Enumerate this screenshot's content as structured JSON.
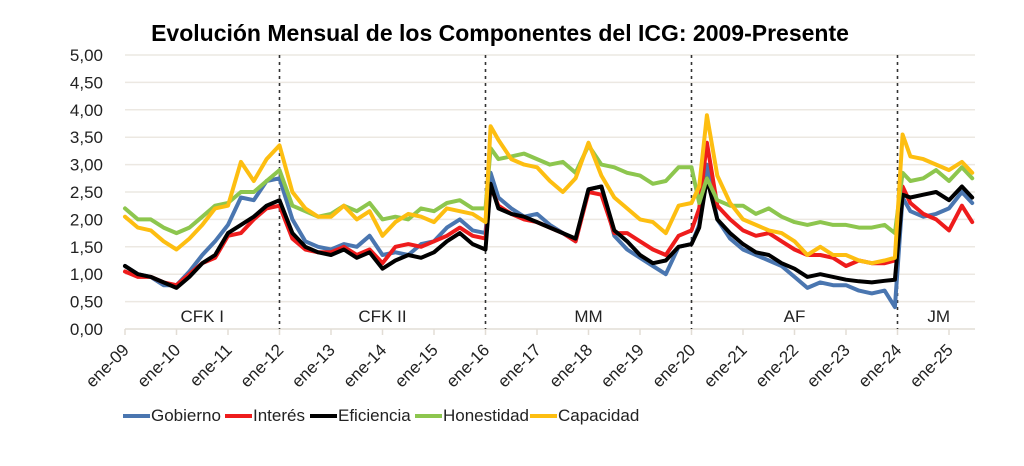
{
  "chart_data": {
    "type": "line",
    "title": "Evolución Mensual de los Componentes del ICG: 2009-Presente",
    "xlabel": "",
    "ylabel": "",
    "ylim": [
      0,
      5
    ],
    "yticks": [
      "0,00",
      "0,50",
      "1,00",
      "1,50",
      "2,00",
      "2,50",
      "3,00",
      "3,50",
      "4,00",
      "4,50",
      "5,00"
    ],
    "ytick_values": [
      0,
      0.5,
      1,
      1.5,
      2,
      2.5,
      3,
      3.5,
      4,
      4.5,
      5
    ],
    "xticks": [
      "ene-09",
      "ene-10",
      "ene-11",
      "ene-12",
      "ene-13",
      "ene-14",
      "ene-15",
      "ene-16",
      "ene-17",
      "ene-18",
      "ene-19",
      "ene-20",
      "ene-21",
      "ene-22",
      "ene-23",
      "ene-24",
      "ene-25"
    ],
    "xlim_years": [
      2009.0,
      2025.5
    ],
    "grid": true,
    "legend_position": "bottom",
    "period_dividers": [
      2012.0,
      2016.0,
      2020.0,
      2024.0
    ],
    "periods": [
      {
        "label": "CFK I",
        "center": 2010.5
      },
      {
        "label": "CFK II",
        "center": 2014.0
      },
      {
        "label": "MM",
        "center": 2018.0
      },
      {
        "label": "AF",
        "center": 2022.0
      },
      {
        "label": "JM",
        "center": 2024.8
      }
    ],
    "x": [
      2009.0,
      2009.25,
      2009.5,
      2009.75,
      2010.0,
      2010.25,
      2010.5,
      2010.75,
      2011.0,
      2011.25,
      2011.5,
      2011.75,
      2012.0,
      2012.25,
      2012.5,
      2012.75,
      2013.0,
      2013.25,
      2013.5,
      2013.75,
      2014.0,
      2014.25,
      2014.5,
      2014.75,
      2015.0,
      2015.25,
      2015.5,
      2015.75,
      2016.0,
      2016.1,
      2016.25,
      2016.5,
      2016.75,
      2017.0,
      2017.25,
      2017.5,
      2017.75,
      2018.0,
      2018.25,
      2018.5,
      2018.75,
      2019.0,
      2019.25,
      2019.5,
      2019.75,
      2020.0,
      2020.15,
      2020.3,
      2020.5,
      2020.75,
      2021.0,
      2021.25,
      2021.5,
      2021.75,
      2022.0,
      2022.25,
      2022.5,
      2022.75,
      2023.0,
      2023.25,
      2023.5,
      2023.75,
      2023.95,
      2024.1,
      2024.25,
      2024.5,
      2024.75,
      2025.0,
      2025.25,
      2025.45
    ],
    "series": [
      {
        "name": "Gobierno",
        "color": "#4a76b0",
        "values": [
          1.15,
          1.0,
          0.95,
          0.8,
          0.8,
          1.05,
          1.35,
          1.6,
          1.9,
          2.4,
          2.35,
          2.7,
          2.75,
          2.0,
          1.6,
          1.5,
          1.45,
          1.55,
          1.5,
          1.7,
          1.35,
          1.4,
          1.35,
          1.55,
          1.6,
          1.85,
          2.0,
          1.8,
          1.75,
          2.85,
          2.4,
          2.2,
          2.05,
          2.1,
          1.9,
          1.75,
          1.6,
          2.55,
          2.6,
          1.7,
          1.45,
          1.3,
          1.15,
          1.0,
          1.5,
          1.55,
          1.9,
          3.0,
          2.0,
          1.65,
          1.45,
          1.35,
          1.25,
          1.15,
          0.95,
          0.75,
          0.85,
          0.8,
          0.8,
          0.7,
          0.65,
          0.7,
          0.4,
          2.4,
          2.15,
          2.05,
          2.1,
          2.2,
          2.5,
          2.3
        ]
      },
      {
        "name": "Interés",
        "color": "#ee1c1c",
        "values": [
          1.05,
          0.95,
          0.95,
          0.85,
          0.8,
          1.0,
          1.2,
          1.3,
          1.7,
          1.75,
          2.0,
          2.2,
          2.25,
          1.65,
          1.45,
          1.4,
          1.4,
          1.5,
          1.35,
          1.45,
          1.2,
          1.5,
          1.55,
          1.5,
          1.6,
          1.7,
          1.85,
          1.7,
          1.65,
          2.6,
          2.25,
          2.1,
          2.0,
          1.95,
          1.85,
          1.75,
          1.6,
          2.5,
          2.45,
          1.75,
          1.75,
          1.6,
          1.45,
          1.35,
          1.7,
          1.8,
          2.2,
          3.4,
          2.25,
          2.0,
          1.8,
          1.7,
          1.75,
          1.6,
          1.45,
          1.35,
          1.35,
          1.3,
          1.15,
          1.25,
          1.2,
          1.2,
          1.25,
          2.6,
          2.3,
          2.1,
          2.0,
          1.8,
          2.25,
          1.95
        ]
      },
      {
        "name": "Eficiencia",
        "color": "#000000",
        "values": [
          1.15,
          1.0,
          0.95,
          0.85,
          0.75,
          0.95,
          1.2,
          1.35,
          1.75,
          1.9,
          2.05,
          2.25,
          2.35,
          1.75,
          1.5,
          1.4,
          1.35,
          1.45,
          1.3,
          1.4,
          1.1,
          1.25,
          1.35,
          1.3,
          1.4,
          1.6,
          1.75,
          1.55,
          1.45,
          2.65,
          2.2,
          2.1,
          2.05,
          1.95,
          1.85,
          1.75,
          1.65,
          2.55,
          2.6,
          1.8,
          1.6,
          1.35,
          1.2,
          1.25,
          1.5,
          1.55,
          1.85,
          2.75,
          2.0,
          1.75,
          1.55,
          1.4,
          1.35,
          1.2,
          1.1,
          0.95,
          1.0,
          0.95,
          0.9,
          0.87,
          0.85,
          0.88,
          0.9,
          2.45,
          2.4,
          2.45,
          2.5,
          2.35,
          2.6,
          2.4
        ]
      },
      {
        "name": "Honestidad",
        "color": "#8dc64e",
        "values": [
          2.2,
          2.0,
          2.0,
          1.85,
          1.75,
          1.85,
          2.05,
          2.25,
          2.3,
          2.5,
          2.5,
          2.7,
          2.9,
          2.25,
          2.15,
          2.05,
          2.1,
          2.25,
          2.15,
          2.3,
          2.0,
          2.05,
          2.0,
          2.2,
          2.15,
          2.3,
          2.35,
          2.2,
          2.2,
          3.3,
          3.1,
          3.15,
          3.2,
          3.1,
          3.0,
          3.05,
          2.85,
          3.35,
          3.0,
          2.95,
          2.85,
          2.8,
          2.65,
          2.7,
          2.95,
          2.95,
          2.3,
          2.75,
          2.35,
          2.25,
          2.25,
          2.1,
          2.2,
          2.05,
          1.95,
          1.9,
          1.95,
          1.9,
          1.9,
          1.85,
          1.85,
          1.9,
          1.75,
          2.85,
          2.7,
          2.75,
          2.9,
          2.7,
          2.95,
          2.75
        ]
      },
      {
        "name": "Capacidad",
        "color": "#fdbe11",
        "values": [
          2.05,
          1.85,
          1.8,
          1.6,
          1.45,
          1.65,
          1.9,
          2.2,
          2.25,
          3.05,
          2.7,
          3.1,
          3.35,
          2.5,
          2.2,
          2.05,
          2.05,
          2.25,
          2.0,
          2.15,
          1.7,
          1.95,
          2.1,
          2.05,
          1.95,
          2.2,
          2.15,
          2.1,
          1.95,
          3.7,
          3.45,
          3.1,
          3.0,
          2.95,
          2.7,
          2.5,
          2.75,
          3.4,
          2.8,
          2.4,
          2.2,
          2.0,
          1.95,
          1.75,
          2.25,
          2.3,
          2.6,
          3.9,
          2.8,
          2.3,
          2.0,
          1.9,
          1.8,
          1.75,
          1.6,
          1.35,
          1.5,
          1.35,
          1.35,
          1.25,
          1.2,
          1.25,
          1.3,
          3.55,
          3.15,
          3.1,
          3.0,
          2.9,
          3.05,
          2.85
        ]
      }
    ]
  }
}
